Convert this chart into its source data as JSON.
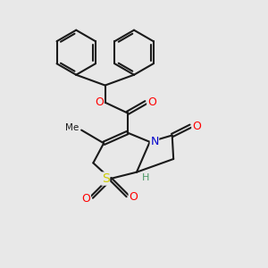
{
  "bg_color": "#e8e8e8",
  "line_color": "#1a1a1a",
  "bond_lw": 1.5,
  "atom_colors": {
    "O": "#ff0000",
    "N": "#0000cc",
    "S": "#cccc00",
    "H": "#555555",
    "C": "#1a1a1a"
  }
}
